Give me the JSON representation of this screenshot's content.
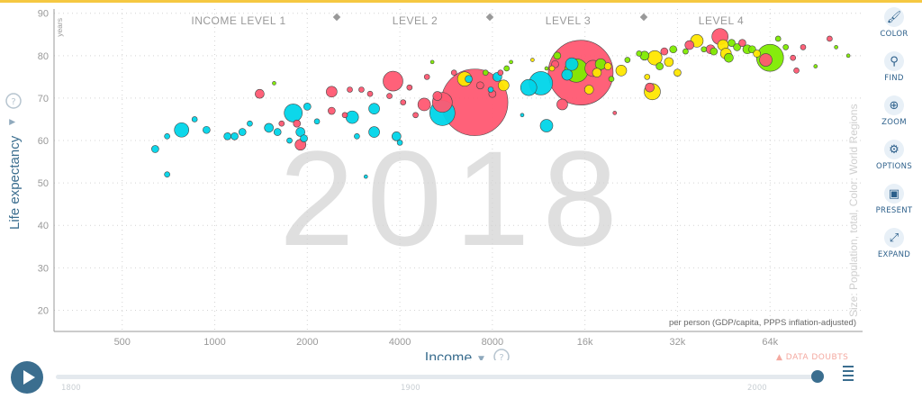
{
  "chart_data": {
    "type": "scatter",
    "year_watermark": "2018",
    "y_unit": "years",
    "ylabel": "Life expectancy",
    "xlabel": "Income",
    "x_note": "per person (GDP/capita, PPPS inflation-adjusted)",
    "size_color_note": "Size: Population, total, Color: World Regions",
    "income_levels": [
      "INCOME LEVEL 1",
      "LEVEL 2",
      "LEVEL 3",
      "LEVEL 4"
    ],
    "x_scale": "log",
    "xlim": [
      300,
      128000
    ],
    "ylim": [
      15,
      91
    ],
    "x_ticks": [
      500,
      1000,
      2000,
      4000,
      8000,
      16000,
      32000,
      64000
    ],
    "x_tick_labels": [
      "500",
      "1000",
      "2000",
      "4000",
      "8000",
      "16k",
      "32k",
      "64k"
    ],
    "y_ticks": [
      20,
      30,
      40,
      50,
      60,
      70,
      80,
      90
    ],
    "y_tick_labels": [
      "20",
      "30",
      "40",
      "50",
      "60",
      "70",
      "80",
      "90"
    ],
    "grid": true,
    "region_colors": {
      "africa": "#00d5e9",
      "asia": "#ff5872",
      "americas": "#ffe700",
      "europe": "#7feb00"
    },
    "bubbles": [
      {
        "x": 640,
        "y": 58,
        "r": 4,
        "region": "africa"
      },
      {
        "x": 700,
        "y": 61,
        "r": 3,
        "region": "africa"
      },
      {
        "x": 700,
        "y": 52,
        "r": 3,
        "region": "africa"
      },
      {
        "x": 780,
        "y": 62.5,
        "r": 8,
        "region": "africa"
      },
      {
        "x": 860,
        "y": 65,
        "r": 3,
        "region": "africa"
      },
      {
        "x": 940,
        "y": 62.5,
        "r": 4,
        "region": "africa"
      },
      {
        "x": 1100,
        "y": 61,
        "r": 4,
        "region": "africa"
      },
      {
        "x": 1160,
        "y": 61,
        "r": 4,
        "region": "africa"
      },
      {
        "x": 1230,
        "y": 62,
        "r": 4,
        "region": "africa"
      },
      {
        "x": 1300,
        "y": 64,
        "r": 3,
        "region": "africa"
      },
      {
        "x": 1400,
        "y": 71,
        "r": 5,
        "region": "asia"
      },
      {
        "x": 1500,
        "y": 63,
        "r": 5,
        "region": "africa"
      },
      {
        "x": 1560,
        "y": 73.5,
        "r": 2,
        "region": "europe"
      },
      {
        "x": 1600,
        "y": 62,
        "r": 4,
        "region": "africa"
      },
      {
        "x": 1650,
        "y": 64,
        "r": 3,
        "region": "asia"
      },
      {
        "x": 1750,
        "y": 60,
        "r": 3,
        "region": "africa"
      },
      {
        "x": 1800,
        "y": 66.5,
        "r": 10,
        "region": "africa"
      },
      {
        "x": 1850,
        "y": 64,
        "r": 4,
        "region": "asia"
      },
      {
        "x": 1900,
        "y": 62,
        "r": 5,
        "region": "africa"
      },
      {
        "x": 1900,
        "y": 59,
        "r": 6,
        "region": "asia"
      },
      {
        "x": 1950,
        "y": 60.5,
        "r": 4,
        "region": "africa"
      },
      {
        "x": 2000,
        "y": 68,
        "r": 4,
        "region": "africa"
      },
      {
        "x": 2150,
        "y": 64.5,
        "r": 3,
        "region": "africa"
      },
      {
        "x": 2400,
        "y": 71.5,
        "r": 6,
        "region": "asia"
      },
      {
        "x": 2400,
        "y": 67,
        "r": 4,
        "region": "asia"
      },
      {
        "x": 2650,
        "y": 66,
        "r": 3,
        "region": "asia"
      },
      {
        "x": 2750,
        "y": 72,
        "r": 3,
        "region": "asia"
      },
      {
        "x": 2800,
        "y": 65.5,
        "r": 7,
        "region": "africa"
      },
      {
        "x": 2900,
        "y": 61,
        "r": 3,
        "region": "africa"
      },
      {
        "x": 3000,
        "y": 72,
        "r": 3,
        "region": "asia"
      },
      {
        "x": 3100,
        "y": 51.5,
        "r": 2,
        "region": "africa"
      },
      {
        "x": 3200,
        "y": 71,
        "r": 3,
        "region": "asia"
      },
      {
        "x": 3300,
        "y": 67.5,
        "r": 6,
        "region": "africa"
      },
      {
        "x": 3300,
        "y": 62,
        "r": 6,
        "region": "africa"
      },
      {
        "x": 3700,
        "y": 70.5,
        "r": 3,
        "region": "asia"
      },
      {
        "x": 3800,
        "y": 74,
        "r": 11,
        "region": "asia"
      },
      {
        "x": 3900,
        "y": 61,
        "r": 5,
        "region": "africa"
      },
      {
        "x": 4000,
        "y": 59.5,
        "r": 3,
        "region": "africa"
      },
      {
        "x": 4100,
        "y": 69,
        "r": 3,
        "region": "asia"
      },
      {
        "x": 4300,
        "y": 72.5,
        "r": 3,
        "region": "asia"
      },
      {
        "x": 4500,
        "y": 66,
        "r": 3,
        "region": "asia"
      },
      {
        "x": 4800,
        "y": 68.5,
        "r": 7,
        "region": "asia"
      },
      {
        "x": 4900,
        "y": 75,
        "r": 3,
        "region": "asia"
      },
      {
        "x": 5100,
        "y": 78.5,
        "r": 2,
        "region": "europe"
      },
      {
        "x": 5300,
        "y": 70.5,
        "r": 5,
        "region": "asia"
      },
      {
        "x": 5500,
        "y": 69,
        "r": 11,
        "region": "asia"
      },
      {
        "x": 5500,
        "y": 66.5,
        "r": 14,
        "region": "africa"
      },
      {
        "x": 6000,
        "y": 76,
        "r": 3,
        "region": "asia"
      },
      {
        "x": 6500,
        "y": 74.5,
        "r": 8,
        "region": "americas"
      },
      {
        "x": 6700,
        "y": 74.5,
        "r": 4,
        "region": "africa"
      },
      {
        "x": 7000,
        "y": 69,
        "r": 37,
        "region": "asia"
      },
      {
        "x": 7300,
        "y": 73,
        "r": 4,
        "region": "asia"
      },
      {
        "x": 7600,
        "y": 76,
        "r": 3,
        "region": "europe"
      },
      {
        "x": 7900,
        "y": 72,
        "r": 3,
        "region": "africa"
      },
      {
        "x": 8000,
        "y": 71,
        "r": 4,
        "region": "asia"
      },
      {
        "x": 8300,
        "y": 75,
        "r": 5,
        "region": "africa"
      },
      {
        "x": 8500,
        "y": 76,
        "r": 3,
        "region": "asia"
      },
      {
        "x": 8700,
        "y": 73,
        "r": 6,
        "region": "americas"
      },
      {
        "x": 8900,
        "y": 77,
        "r": 3,
        "region": "europe"
      },
      {
        "x": 9200,
        "y": 78.5,
        "r": 2,
        "region": "europe"
      },
      {
        "x": 10000,
        "y": 66,
        "r": 2,
        "region": "africa"
      },
      {
        "x": 10500,
        "y": 72.5,
        "r": 9,
        "region": "africa"
      },
      {
        "x": 10800,
        "y": 79,
        "r": 2,
        "region": "americas"
      },
      {
        "x": 11500,
        "y": 73.5,
        "r": 13,
        "region": "africa"
      },
      {
        "x": 12000,
        "y": 63.5,
        "r": 7,
        "region": "africa"
      },
      {
        "x": 12000,
        "y": 77,
        "r": 2,
        "region": "europe"
      },
      {
        "x": 12500,
        "y": 77,
        "r": 3,
        "region": "americas"
      },
      {
        "x": 12800,
        "y": 78,
        "r": 4,
        "region": "asia"
      },
      {
        "x": 13000,
        "y": 80,
        "r": 4,
        "region": "europe"
      },
      {
        "x": 13500,
        "y": 68.5,
        "r": 6,
        "region": "asia"
      },
      {
        "x": 14000,
        "y": 75.5,
        "r": 6,
        "region": "africa"
      },
      {
        "x": 14500,
        "y": 78,
        "r": 7,
        "region": "africa"
      },
      {
        "x": 15000,
        "y": 76.5,
        "r": 13,
        "region": "europe"
      },
      {
        "x": 15500,
        "y": 76,
        "r": 36,
        "region": "asia"
      },
      {
        "x": 16500,
        "y": 72,
        "r": 5,
        "region": "americas"
      },
      {
        "x": 17000,
        "y": 77,
        "r": 9,
        "region": "asia"
      },
      {
        "x": 17500,
        "y": 76,
        "r": 5,
        "region": "americas"
      },
      {
        "x": 18000,
        "y": 78,
        "r": 6,
        "region": "europe"
      },
      {
        "x": 19000,
        "y": 77.5,
        "r": 4,
        "region": "americas"
      },
      {
        "x": 19500,
        "y": 74.5,
        "r": 3,
        "region": "europe"
      },
      {
        "x": 20000,
        "y": 66.5,
        "r": 2,
        "region": "asia"
      },
      {
        "x": 21000,
        "y": 76.5,
        "r": 6,
        "region": "americas"
      },
      {
        "x": 22000,
        "y": 79,
        "r": 3,
        "region": "europe"
      },
      {
        "x": 24000,
        "y": 80.5,
        "r": 3,
        "region": "europe"
      },
      {
        "x": 25000,
        "y": 80,
        "r": 5,
        "region": "europe"
      },
      {
        "x": 25500,
        "y": 75,
        "r": 3,
        "region": "americas"
      },
      {
        "x": 26000,
        "y": 72.5,
        "r": 5,
        "region": "asia"
      },
      {
        "x": 26500,
        "y": 71.5,
        "r": 9,
        "region": "americas"
      },
      {
        "x": 27000,
        "y": 79.5,
        "r": 8,
        "region": "americas"
      },
      {
        "x": 28000,
        "y": 77.5,
        "r": 4,
        "region": "europe"
      },
      {
        "x": 29000,
        "y": 81,
        "r": 4,
        "region": "asia"
      },
      {
        "x": 30000,
        "y": 78.5,
        "r": 5,
        "region": "americas"
      },
      {
        "x": 31000,
        "y": 81.5,
        "r": 4,
        "region": "europe"
      },
      {
        "x": 32000,
        "y": 76,
        "r": 4,
        "region": "americas"
      },
      {
        "x": 34000,
        "y": 81,
        "r": 3,
        "region": "europe"
      },
      {
        "x": 35000,
        "y": 82.5,
        "r": 5,
        "region": "asia"
      },
      {
        "x": 37000,
        "y": 83.5,
        "r": 7,
        "region": "americas"
      },
      {
        "x": 39000,
        "y": 81.5,
        "r": 3,
        "region": "europe"
      },
      {
        "x": 41000,
        "y": 81.5,
        "r": 5,
        "region": "asia"
      },
      {
        "x": 42000,
        "y": 81,
        "r": 4,
        "region": "europe"
      },
      {
        "x": 44000,
        "y": 84.5,
        "r": 9,
        "region": "asia"
      },
      {
        "x": 45000,
        "y": 82.5,
        "r": 6,
        "region": "americas"
      },
      {
        "x": 46000,
        "y": 80.5,
        "r": 6,
        "region": "americas"
      },
      {
        "x": 47000,
        "y": 79.5,
        "r": 5,
        "region": "europe"
      },
      {
        "x": 48000,
        "y": 83,
        "r": 4,
        "region": "europe"
      },
      {
        "x": 50000,
        "y": 82,
        "r": 4,
        "region": "europe"
      },
      {
        "x": 52000,
        "y": 83,
        "r": 4,
        "region": "asia"
      },
      {
        "x": 54000,
        "y": 81.5,
        "r": 5,
        "region": "europe"
      },
      {
        "x": 56000,
        "y": 81.5,
        "r": 4,
        "region": "europe"
      },
      {
        "x": 58000,
        "y": 80.5,
        "r": 4,
        "region": "americas"
      },
      {
        "x": 62000,
        "y": 79,
        "r": 7,
        "region": "asia"
      },
      {
        "x": 64000,
        "y": 79.5,
        "r": 15,
        "region": "europe"
      },
      {
        "x": 68000,
        "y": 84,
        "r": 3,
        "region": "europe"
      },
      {
        "x": 72000,
        "y": 82,
        "r": 3,
        "region": "europe"
      },
      {
        "x": 76000,
        "y": 79.5,
        "r": 3,
        "region": "asia"
      },
      {
        "x": 78000,
        "y": 76.5,
        "r": 3,
        "region": "asia"
      },
      {
        "x": 82000,
        "y": 82,
        "r": 3,
        "region": "asia"
      },
      {
        "x": 90000,
        "y": 77.5,
        "r": 2,
        "region": "europe"
      },
      {
        "x": 100000,
        "y": 84,
        "r": 3,
        "region": "asia"
      },
      {
        "x": 105000,
        "y": 82,
        "r": 2,
        "region": "europe"
      },
      {
        "x": 115000,
        "y": 80,
        "r": 2,
        "region": "europe"
      }
    ]
  },
  "toolbar": {
    "color": "COLOR",
    "find": "FIND",
    "zoom": "ZOOM",
    "options": "OPTIONS",
    "present": "PRESENT",
    "expand": "EXPAND"
  },
  "timeline": {
    "start_label": "1800",
    "mid_label": "1900",
    "end_label": "2000",
    "progress": 0.998
  },
  "data_doubts": "DATA DOUBTS"
}
